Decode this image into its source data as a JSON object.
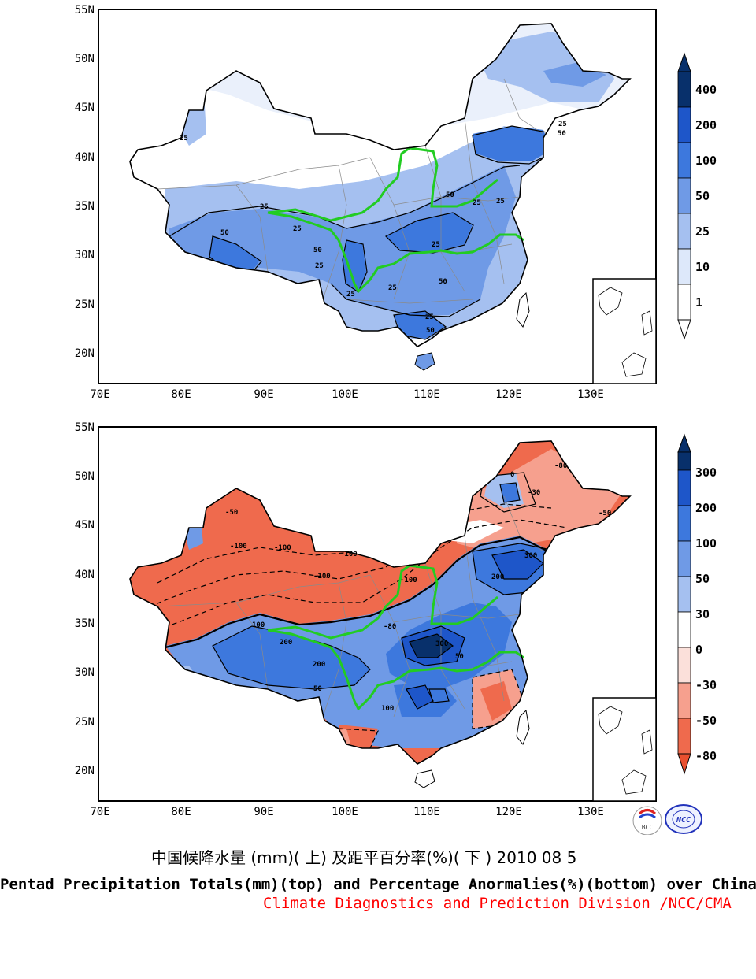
{
  "map_top": {
    "lat_labels": [
      "55N",
      "50N",
      "45N",
      "40N",
      "35N",
      "30N",
      "25N",
      "20N"
    ],
    "lon_labels": [
      "70E",
      "80E",
      "90E",
      "100E",
      "110E",
      "120E",
      "130E"
    ],
    "contour_labels": [
      "25",
      "25",
      "25",
      "25",
      "25",
      "25",
      "25",
      "25",
      "25",
      "25",
      "25",
      "50",
      "50",
      "50",
      "50",
      "50",
      "50"
    ],
    "colorbar": {
      "labels": [
        "400",
        "200",
        "100",
        "50",
        "25",
        "10",
        "1"
      ],
      "colors": [
        "#08306b",
        "#1e56c9",
        "#3d78dd",
        "#6f9ae6",
        "#a5c0f0",
        "#dde8fa",
        "#ffffff"
      ]
    }
  },
  "map_bottom": {
    "lat_labels": [
      "55N",
      "50N",
      "45N",
      "40N",
      "35N",
      "30N",
      "25N",
      "20N"
    ],
    "lon_labels": [
      "70E",
      "80E",
      "90E",
      "100E",
      "110E",
      "120E",
      "130E"
    ],
    "contour_labels": [
      "-100",
      "-100",
      "-100",
      "-100",
      "-100",
      "-80",
      "-80",
      "-50",
      "-50",
      "-30",
      "100",
      "100",
      "200",
      "200",
      "300",
      "300",
      "200",
      "50",
      "50",
      "0"
    ],
    "colorbar": {
      "labels": [
        "300",
        "200",
        "100",
        "50",
        "30",
        "0",
        "-30",
        "-50",
        "-80"
      ],
      "colors": [
        "#08306b",
        "#1e56c9",
        "#3d78dd",
        "#6f9ae6",
        "#a5c0f0",
        "#ffffff",
        "#fbe0da",
        "#f6a08e",
        "#ef6a4d",
        "#e9502f"
      ]
    }
  },
  "logos": {
    "left": "BCC",
    "right": "NCC"
  },
  "caption": {
    "chinese": "中国候降水量 (mm)( 上) 及距平百分率(%)( 下 ) 2010 08 5",
    "english": "Pentad Precipitation Totals(mm)(top) and Percentage Anormalies(%)(bottom) over China",
    "org": "Climate Diagnostics and Prediction Division /NCC/CMA",
    "org_color": "#ff0000"
  }
}
